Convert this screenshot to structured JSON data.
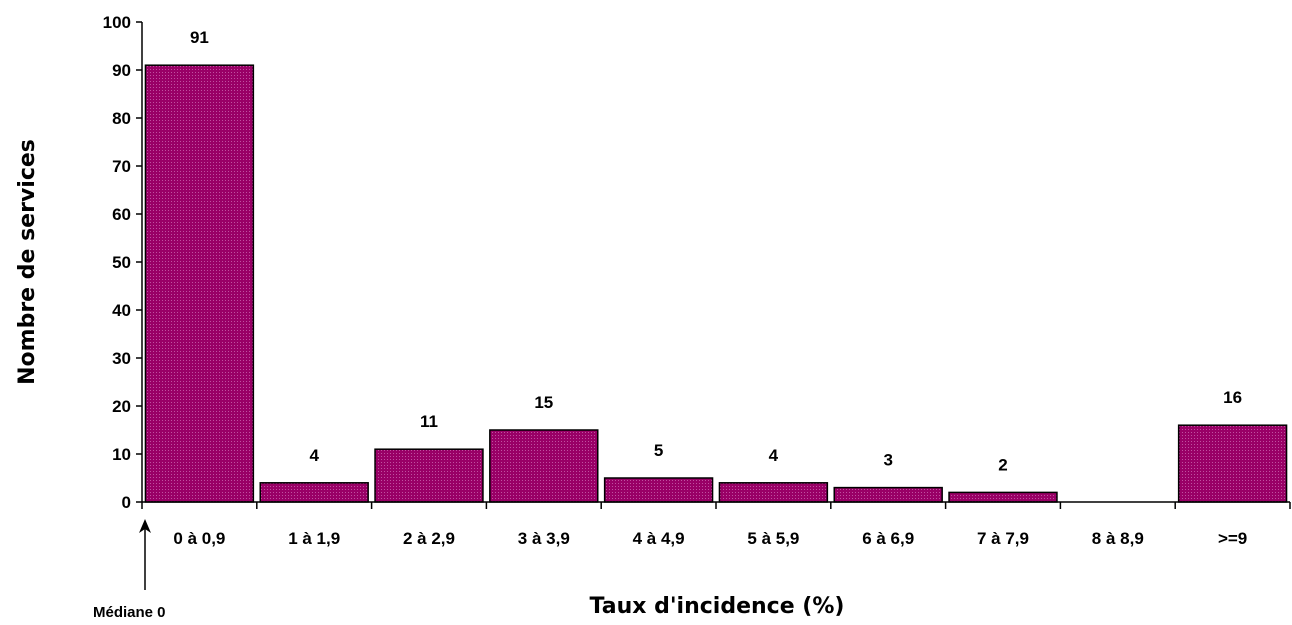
{
  "chart_data": {
    "type": "bar",
    "categories": [
      "0 à 0,9",
      "1 à 1,9",
      "2 à 2,9",
      "3 à 3,9",
      "4 à 4,9",
      "5 à 5,9",
      "6 à 6,9",
      "7 à 7,9",
      "8 à 8,9",
      ">=9"
    ],
    "values": [
      91,
      4,
      11,
      15,
      5,
      4,
      3,
      2,
      0,
      16
    ],
    "data_labels": [
      "91",
      "4",
      "11",
      "15",
      "5",
      "4",
      "3",
      "2",
      "",
      "16"
    ],
    "yticks": [
      "0",
      "10",
      "20",
      "30",
      "40",
      "50",
      "60",
      "70",
      "80",
      "90",
      "100"
    ],
    "ylim": [
      0,
      100
    ],
    "xlabel": "Taux d'incidence (%)",
    "ylabel": "Nombre de services",
    "annotation": "Médiane 0",
    "bar_color": "#990066",
    "grid": false
  }
}
